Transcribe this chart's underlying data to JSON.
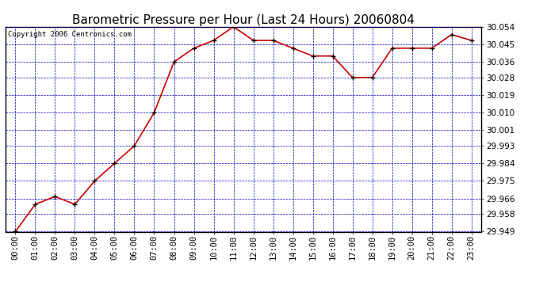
{
  "title": "Barometric Pressure per Hour (Last 24 Hours) 20060804",
  "copyright": "Copyright 2006 Centronics.com",
  "x_labels": [
    "00:00",
    "01:00",
    "02:00",
    "03:00",
    "04:00",
    "05:00",
    "06:00",
    "07:00",
    "08:00",
    "09:00",
    "10:00",
    "11:00",
    "12:00",
    "13:00",
    "14:00",
    "15:00",
    "16:00",
    "17:00",
    "18:00",
    "19:00",
    "20:00",
    "21:00",
    "22:00",
    "23:00"
  ],
  "y_values": [
    29.949,
    29.963,
    29.967,
    29.963,
    29.975,
    29.984,
    29.993,
    30.01,
    30.036,
    30.043,
    30.047,
    30.054,
    30.047,
    30.047,
    30.043,
    30.039,
    30.039,
    30.028,
    30.028,
    30.043,
    30.043,
    30.043,
    30.05,
    30.047
  ],
  "ylim_min": 29.949,
  "ylim_max": 30.054,
  "yticks": [
    29.949,
    29.958,
    29.966,
    29.975,
    29.984,
    29.993,
    30.001,
    30.01,
    30.019,
    30.028,
    30.036,
    30.045,
    30.054
  ],
  "line_color": "#cc0000",
  "marker_color": "#000000",
  "bg_color": "#ffffff",
  "plot_bg_color": "#ffffff",
  "grid_color": "#0000bb",
  "title_fontsize": 11,
  "copyright_fontsize": 6.5,
  "tick_fontsize": 7.5,
  "figwidth": 6.9,
  "figheight": 3.75,
  "dpi": 100
}
